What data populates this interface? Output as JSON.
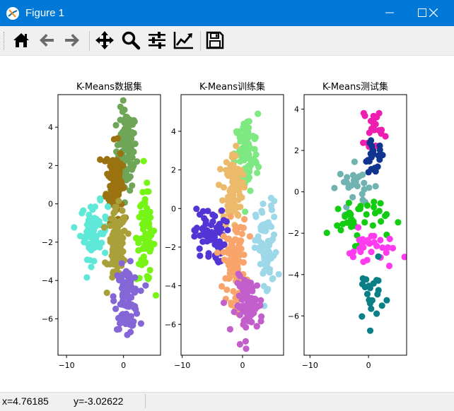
{
  "window": {
    "title": "Figure 1",
    "minimize_icon": "minimize-icon",
    "maximize_icon": "maximize-icon",
    "close_icon": "close-icon",
    "titlebar_color": "#0078d7"
  },
  "toolbar": {
    "buttons": [
      {
        "name": "home",
        "icon": "home-icon"
      },
      {
        "name": "back",
        "icon": "back-arrow-icon"
      },
      {
        "name": "forward",
        "icon": "forward-arrow-icon"
      },
      {
        "name": "pan",
        "icon": "move-icon"
      },
      {
        "name": "zoom",
        "icon": "magnifier-icon"
      },
      {
        "name": "configure-subplots",
        "icon": "sliders-icon"
      },
      {
        "name": "edit-axis",
        "icon": "line-chart-icon"
      },
      {
        "name": "save",
        "icon": "floppy-disk-icon"
      }
    ]
  },
  "status": {
    "x_readout": "x=4.76185",
    "y_readout": "y=-3.02622"
  },
  "chart_data": [
    {
      "type": "scatter",
      "title": "K-Means数据集",
      "xlim": [
        -11.5,
        6.5
      ],
      "ylim": [
        -7.9,
        5.7
      ],
      "xticks": [
        -10,
        0
      ],
      "yticks": [
        4,
        2,
        0,
        -2,
        -4,
        -6
      ],
      "clusters": [
        {
          "color": "#6fa557",
          "center": [
            0.5,
            2.8
          ],
          "spread": [
            1.1,
            1.3
          ],
          "n": 110
        },
        {
          "color": "#9b7210",
          "center": [
            -1.6,
            1.2
          ],
          "spread": [
            0.9,
            1.2
          ],
          "n": 110
        },
        {
          "color": "#5ee8d8",
          "center": [
            -5.2,
            -1.4
          ],
          "spread": [
            1.5,
            0.9
          ],
          "n": 70
        },
        {
          "color": "#76f416",
          "center": [
            3.9,
            -1.7
          ],
          "spread": [
            1.0,
            1.5
          ],
          "n": 80
        },
        {
          "color": "#a9a03a",
          "center": [
            -1.1,
            -2.2
          ],
          "spread": [
            1.0,
            1.2
          ],
          "n": 110
        },
        {
          "color": "#8466d6",
          "center": [
            0.6,
            -4.9
          ],
          "spread": [
            1.3,
            1.0
          ],
          "n": 90
        }
      ]
    },
    {
      "type": "scatter",
      "title": "K-Means训练集",
      "xlim": [
        -10.2,
        6.8
      ],
      "ylim": [
        -7.6,
        5.9
      ],
      "xticks": [
        -10,
        0
      ],
      "yticks": [
        4,
        2,
        0,
        -2,
        -4,
        -6
      ],
      "clusters": [
        {
          "color": "#7ee882",
          "center": [
            0.6,
            2.8
          ],
          "spread": [
            1.2,
            1.3
          ],
          "n": 100
        },
        {
          "color": "#ecba6b",
          "center": [
            -1.6,
            1.0
          ],
          "spread": [
            1.0,
            1.2
          ],
          "n": 90
        },
        {
          "color": "#5335d6",
          "center": [
            -5.5,
            -1.4
          ],
          "spread": [
            1.6,
            0.9
          ],
          "n": 65
        },
        {
          "color": "#9dd8e8",
          "center": [
            4.0,
            -2.2
          ],
          "spread": [
            1.1,
            1.6
          ],
          "n": 75
        },
        {
          "color": "#f8a46a",
          "center": [
            -1.3,
            -2.7
          ],
          "spread": [
            1.2,
            1.3
          ],
          "n": 100
        },
        {
          "color": "#c25fcb",
          "center": [
            1.1,
            -5.0
          ],
          "spread": [
            1.4,
            0.9
          ],
          "n": 80
        }
      ]
    },
    {
      "type": "scatter",
      "title": "K-Means测试集",
      "xlim": [
        -11.0,
        6.5
      ],
      "ylim": [
        -7.9,
        4.7
      ],
      "xticks": [
        -10,
        0
      ],
      "yticks": [
        4,
        2,
        0,
        -2,
        -4,
        -6
      ],
      "clusters": [
        {
          "color": "#ee1fb0",
          "center": [
            0.8,
            3.2
          ],
          "spread": [
            1.0,
            0.6
          ],
          "n": 22
        },
        {
          "color": "#0f3590",
          "center": [
            0.8,
            1.6
          ],
          "spread": [
            1.2,
            0.5
          ],
          "n": 22
        },
        {
          "color": "#70b3b1",
          "center": [
            -2.0,
            0.3
          ],
          "spread": [
            2.0,
            0.6
          ],
          "n": 25
        },
        {
          "color": "#11cc11",
          "center": [
            -2.0,
            -1.3
          ],
          "spread": [
            3.2,
            0.7
          ],
          "n": 40
        },
        {
          "color": "#ff3bf0",
          "center": [
            0.5,
            -2.8
          ],
          "spread": [
            2.6,
            0.6
          ],
          "n": 30
        },
        {
          "color": "#0b7f86",
          "center": [
            0.3,
            -5.0
          ],
          "spread": [
            1.5,
            0.9
          ],
          "n": 22
        }
      ]
    }
  ]
}
